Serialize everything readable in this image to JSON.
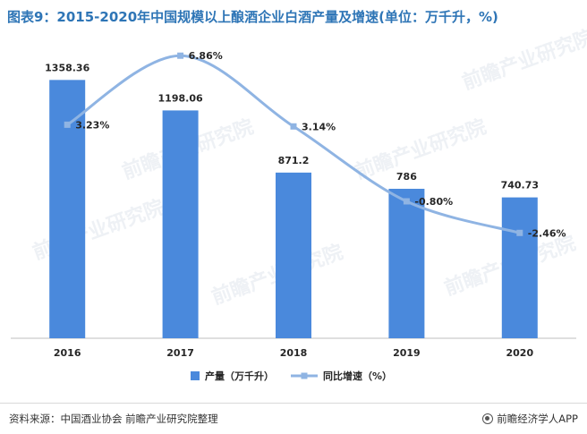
{
  "title": "图表9：2015-2020年中国规模以上酿酒企业白酒产量及增速(单位：万千升，%)",
  "watermark": "前瞻产业研究院",
  "source": "资料来源：中国酒业协会 前瞻产业研究院整理",
  "brand": "前瞻经济学人APP",
  "chart_data": {
    "type": "bar",
    "categories": [
      "2016",
      "2017",
      "2018",
      "2019",
      "2020"
    ],
    "series": [
      {
        "name": "产量（万千升）",
        "kind": "bar",
        "color": "#4a89dc",
        "values": [
          1358.36,
          1198.06,
          871.2,
          786,
          740.73
        ],
        "labels": [
          "1358.36",
          "1198.06",
          "871.2",
          "786",
          "740.73"
        ]
      },
      {
        "name": "同比增速（%）",
        "kind": "line",
        "smooth": true,
        "color": "#8fb4e3",
        "values": [
          3.23,
          6.86,
          3.14,
          -0.8,
          -2.46
        ],
        "labels": [
          "3.23%",
          "6.86%",
          "3.14%",
          "-0.80%",
          "-2.46%"
        ]
      }
    ],
    "y_left_range": [
      0,
      1600
    ],
    "y_right_range": [
      -8,
      8
    ],
    "grid": false,
    "legend_position": "bottom"
  }
}
